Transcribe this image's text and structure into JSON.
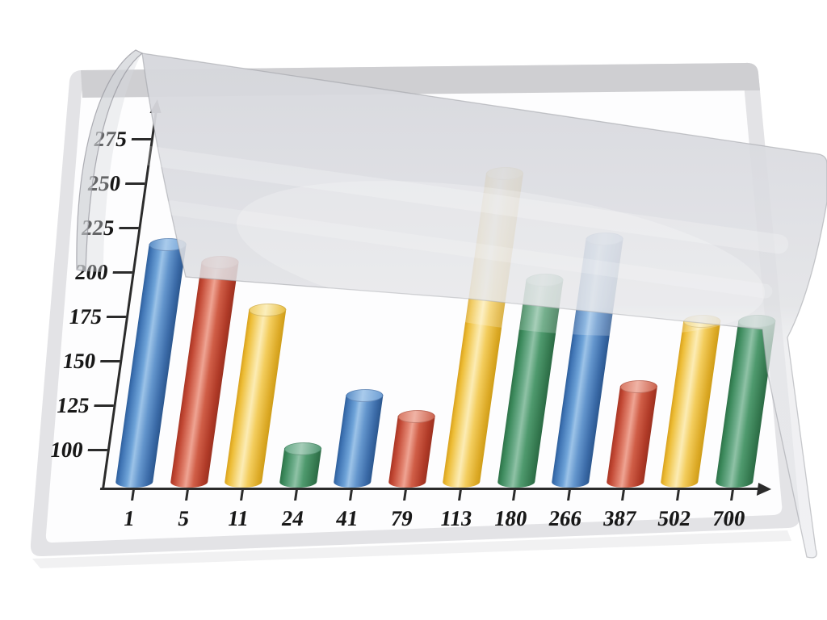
{
  "scene": {
    "background_color": "#ffffff",
    "paper": "white laminated sheet in perspective",
    "film": "translucent plastic film with curled top-left corner covering upper part of chart"
  },
  "chart_data": {
    "type": "bar",
    "title": "",
    "xlabel": "",
    "ylabel": "",
    "categories": [
      "1",
      "5",
      "11",
      "24",
      "41",
      "79",
      "113",
      "180",
      "266",
      "387",
      "502",
      "700"
    ],
    "values": [
      215,
      205,
      178,
      100,
      130,
      118,
      255,
      195,
      218,
      135,
      172,
      172
    ],
    "bar_colors": [
      "blue",
      "red",
      "yellow",
      "green",
      "blue",
      "red",
      "yellow",
      "green",
      "blue",
      "red",
      "yellow",
      "green"
    ],
    "palette": {
      "blue": "#4a82c4",
      "red": "#cb4a37",
      "yellow": "#f2c84b",
      "green": "#3f8f62"
    },
    "y_ticks": [
      100,
      125,
      150,
      175,
      200,
      225,
      250,
      275
    ],
    "ylim": [
      78,
      290
    ],
    "grid": false,
    "legend": "none",
    "bar_style": "3d-cylinder"
  }
}
